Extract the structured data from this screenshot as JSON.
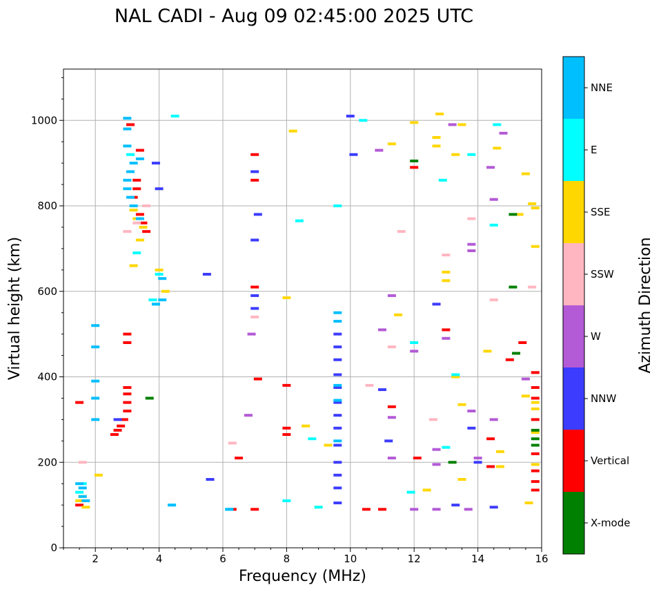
{
  "chart_data": {
    "type": "scatter",
    "title": "NAL CADI - Aug 09 02:45:00 2025 UTC",
    "xlabel": "Frequency (MHz)",
    "ylabel": "Virtual height (km)",
    "xlim": [
      1,
      16
    ],
    "ylim": [
      0,
      1120
    ],
    "xticks": [
      2,
      4,
      6,
      8,
      10,
      12,
      14,
      16
    ],
    "yticks": [
      0,
      200,
      400,
      600,
      800,
      1000
    ],
    "grid": true,
    "colorbar": {
      "title": "Azimuth Direction",
      "categories": [
        "X-mode",
        "Vertical",
        "NNW",
        "W",
        "SSW",
        "SSE",
        "E",
        "NNE"
      ],
      "colors": {
        "X-mode": "#008000",
        "Vertical": "#ff0000",
        "NNW": "#3c3cff",
        "W": "#b35ad6",
        "SSW": "#ffb6c1",
        "SSE": "#ffd700",
        "E": "#00ffff",
        "NNE": "#00bfff"
      }
    },
    "series": [
      {
        "name": "Vertical",
        "points": [
          [
            1.5,
            100
          ],
          [
            1.6,
            110
          ],
          [
            1.5,
            340
          ],
          [
            2.6,
            265
          ],
          [
            2.7,
            275
          ],
          [
            2.8,
            285
          ],
          [
            2.9,
            300
          ],
          [
            3.0,
            320
          ],
          [
            3.0,
            340
          ],
          [
            3.0,
            360
          ],
          [
            3.0,
            375
          ],
          [
            3.0,
            480
          ],
          [
            3.0,
            500
          ],
          [
            3.2,
            820
          ],
          [
            3.3,
            840
          ],
          [
            3.3,
            860
          ],
          [
            3.4,
            780
          ],
          [
            3.5,
            760
          ],
          [
            3.6,
            740
          ],
          [
            3.1,
            990
          ],
          [
            3.4,
            930
          ],
          [
            7.0,
            860
          ],
          [
            7.0,
            920
          ],
          [
            7.0,
            610
          ],
          [
            8.0,
            280
          ],
          [
            8.0,
            265
          ],
          [
            8.0,
            380
          ],
          [
            7.0,
            90
          ],
          [
            6.5,
            210
          ],
          [
            7.1,
            395
          ],
          [
            11.3,
            330
          ],
          [
            12.0,
            890
          ],
          [
            12.1,
            210
          ],
          [
            13.0,
            510
          ],
          [
            14.4,
            255
          ],
          [
            14.4,
            190
          ],
          [
            15.4,
            480
          ],
          [
            15.0,
            440
          ],
          [
            15.8,
            410
          ],
          [
            15.8,
            375
          ],
          [
            15.8,
            350
          ],
          [
            15.8,
            300
          ],
          [
            15.8,
            220
          ],
          [
            15.8,
            180
          ],
          [
            15.8,
            155
          ],
          [
            15.8,
            135
          ],
          [
            10.5,
            90
          ],
          [
            11.0,
            90
          ],
          [
            6.3,
            90
          ]
        ]
      },
      {
        "name": "NNW",
        "points": [
          [
            9.6,
            500
          ],
          [
            9.6,
            470
          ],
          [
            9.6,
            440
          ],
          [
            9.6,
            405
          ],
          [
            9.6,
            375
          ],
          [
            9.6,
            340
          ],
          [
            9.6,
            310
          ],
          [
            9.6,
            280
          ],
          [
            9.6,
            240
          ],
          [
            9.6,
            200
          ],
          [
            9.6,
            170
          ],
          [
            9.6,
            140
          ],
          [
            9.6,
            105
          ],
          [
            7.0,
            880
          ],
          [
            7.0,
            720
          ],
          [
            7.1,
            780
          ],
          [
            7.0,
            590
          ],
          [
            7.0,
            560
          ],
          [
            3.9,
            900
          ],
          [
            4.0,
            840
          ],
          [
            10.0,
            1010
          ],
          [
            10.1,
            920
          ],
          [
            11.0,
            370
          ],
          [
            11.2,
            250
          ],
          [
            12.7,
            570
          ],
          [
            13.8,
            280
          ],
          [
            14.5,
            95
          ],
          [
            13.3,
            100
          ],
          [
            5.5,
            640
          ],
          [
            5.6,
            160
          ],
          [
            2.7,
            300
          ],
          [
            14.0,
            200
          ]
        ]
      },
      {
        "name": "W",
        "points": [
          [
            11.3,
            305
          ],
          [
            12.7,
            230
          ],
          [
            13.0,
            490
          ],
          [
            13.8,
            710
          ],
          [
            13.8,
            695
          ],
          [
            14.5,
            300
          ],
          [
            14.4,
            890
          ],
          [
            14.5,
            815
          ],
          [
            14.8,
            970
          ],
          [
            13.2,
            990
          ],
          [
            10.9,
            930
          ],
          [
            11.3,
            590
          ],
          [
            12.0,
            460
          ],
          [
            13.8,
            320
          ],
          [
            14.0,
            210
          ],
          [
            12.7,
            195
          ],
          [
            12.7,
            90
          ],
          [
            11.3,
            210
          ],
          [
            11.0,
            510
          ],
          [
            15.5,
            395
          ],
          [
            12.0,
            90
          ],
          [
            13.7,
            90
          ],
          [
            6.8,
            310
          ],
          [
            6.9,
            500
          ]
        ]
      },
      {
        "name": "SSW",
        "points": [
          [
            3.3,
            760
          ],
          [
            3.6,
            800
          ],
          [
            3.0,
            740
          ],
          [
            7.0,
            540
          ],
          [
            10.6,
            380
          ],
          [
            11.3,
            470
          ],
          [
            11.6,
            740
          ],
          [
            13.0,
            685
          ],
          [
            13.8,
            770
          ],
          [
            14.5,
            580
          ],
          [
            15.7,
            610
          ],
          [
            12.6,
            300
          ],
          [
            6.3,
            245
          ],
          [
            13.0,
            235
          ],
          [
            1.6,
            200
          ]
        ]
      },
      {
        "name": "SSE",
        "points": [
          [
            3.2,
            790
          ],
          [
            3.3,
            770
          ],
          [
            3.5,
            750
          ],
          [
            3.4,
            720
          ],
          [
            4.0,
            650
          ],
          [
            4.2,
            600
          ],
          [
            3.2,
            660
          ],
          [
            2.1,
            170
          ],
          [
            12.8,
            1015
          ],
          [
            13.5,
            990
          ],
          [
            13.3,
            920
          ],
          [
            12.7,
            960
          ],
          [
            12.7,
            940
          ],
          [
            15.3,
            780
          ],
          [
            15.5,
            875
          ],
          [
            15.7,
            805
          ],
          [
            15.8,
            795
          ],
          [
            15.8,
            705
          ],
          [
            14.6,
            935
          ],
          [
            14.3,
            460
          ],
          [
            15.5,
            355
          ],
          [
            15.8,
            340
          ],
          [
            15.8,
            325
          ],
          [
            15.8,
            270
          ],
          [
            15.8,
            195
          ],
          [
            15.6,
            105
          ],
          [
            13.3,
            400
          ],
          [
            13.0,
            645
          ],
          [
            13.0,
            625
          ],
          [
            13.5,
            335
          ],
          [
            14.7,
            225
          ],
          [
            14.7,
            190
          ],
          [
            11.5,
            545
          ],
          [
            12.0,
            995
          ],
          [
            13.5,
            160
          ],
          [
            12.4,
            135
          ],
          [
            9.3,
            240
          ],
          [
            9.0,
            95
          ],
          [
            8.6,
            285
          ],
          [
            8.0,
            585
          ],
          [
            8.2,
            975
          ],
          [
            11.3,
            945
          ],
          [
            1.6,
            120
          ],
          [
            1.5,
            110
          ],
          [
            1.7,
            95
          ]
        ]
      },
      {
        "name": "E",
        "points": [
          [
            3.3,
            690
          ],
          [
            4.0,
            640
          ],
          [
            3.8,
            580
          ],
          [
            3.9,
            570
          ],
          [
            4.5,
            1010
          ],
          [
            4.4,
            100
          ],
          [
            6.2,
            90
          ],
          [
            8.0,
            110
          ],
          [
            12.9,
            860
          ],
          [
            13.3,
            405
          ],
          [
            13.0,
            235
          ],
          [
            12.0,
            480
          ],
          [
            11.9,
            130
          ],
          [
            14.5,
            755
          ],
          [
            14.6,
            990
          ],
          [
            13.8,
            920
          ],
          [
            9.6,
            800
          ],
          [
            10.4,
            1000
          ],
          [
            3.1,
            920
          ],
          [
            8.8,
            255
          ],
          [
            8.4,
            765
          ],
          [
            9.0,
            95
          ],
          [
            1.6,
            150
          ],
          [
            1.5,
            130
          ]
        ]
      },
      {
        "name": "NNE",
        "points": [
          [
            3.0,
            1005
          ],
          [
            3.0,
            980
          ],
          [
            3.1,
            880
          ],
          [
            3.2,
            900
          ],
          [
            3.0,
            860
          ],
          [
            3.0,
            840
          ],
          [
            3.1,
            820
          ],
          [
            3.2,
            800
          ],
          [
            3.4,
            770
          ],
          [
            3.0,
            940
          ],
          [
            3.9,
            570
          ],
          [
            4.1,
            580
          ],
          [
            4.1,
            630
          ],
          [
            4.4,
            100
          ],
          [
            3.4,
            910
          ],
          [
            6.2,
            90
          ],
          [
            9.6,
            550
          ],
          [
            9.6,
            530
          ],
          [
            9.6,
            380
          ],
          [
            9.6,
            345
          ],
          [
            9.6,
            250
          ],
          [
            1.6,
            120
          ],
          [
            1.6,
            140
          ],
          [
            1.5,
            150
          ],
          [
            1.7,
            110
          ],
          [
            2.0,
            520
          ],
          [
            2.0,
            470
          ],
          [
            2.0,
            390
          ],
          [
            2.0,
            350
          ],
          [
            2.0,
            300
          ]
        ]
      },
      {
        "name": "X-mode",
        "points": [
          [
            3.7,
            350
          ],
          [
            12.0,
            905
          ],
          [
            13.2,
            200
          ],
          [
            15.1,
            610
          ],
          [
            15.2,
            455
          ],
          [
            15.8,
            275
          ],
          [
            15.8,
            255
          ],
          [
            15.8,
            240
          ],
          [
            15.1,
            780
          ]
        ]
      }
    ]
  }
}
